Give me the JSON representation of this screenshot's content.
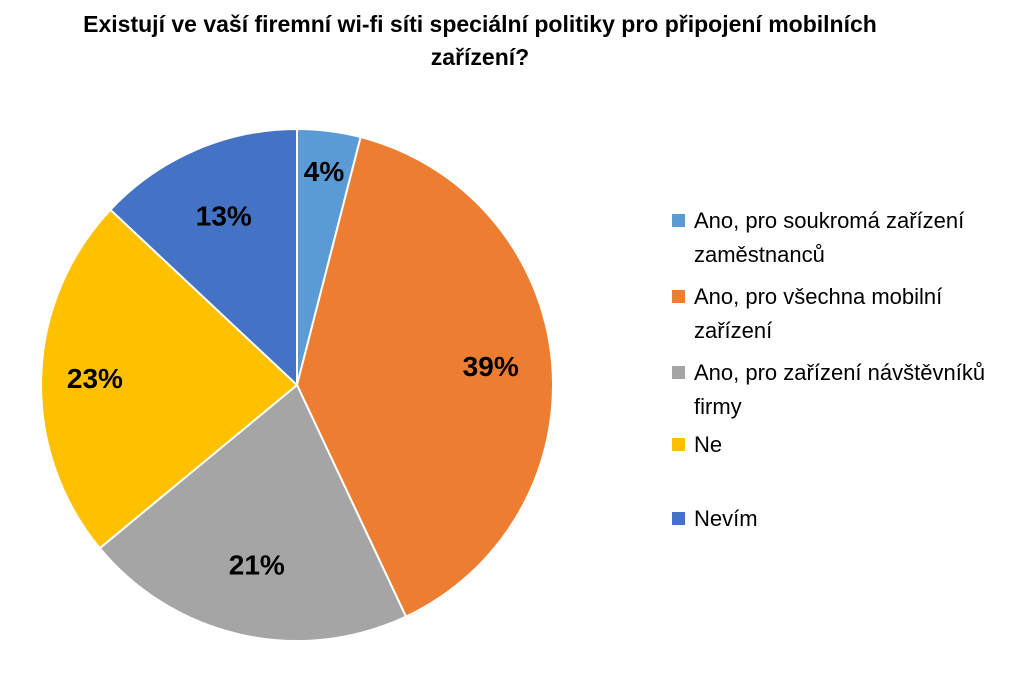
{
  "chart_data": {
    "type": "pie",
    "title": "Existují ve vaší firemní wi-fi síti speciální politiky pro připojení mobilních zařízení?",
    "categories": [
      "Ano, pro soukromá zařízení zaměstnanců",
      "Ano, pro všechna mobilní zařízení",
      "Ano, pro zařízení návštěvníků firmy",
      "Ne",
      "Nevím"
    ],
    "values": [
      4,
      39,
      21,
      23,
      13
    ],
    "unit": "%",
    "data_labels": [
      "4%",
      "39%",
      "21%",
      "23%",
      "13%"
    ],
    "colors": [
      "#5B9BD5",
      "#ED7D31",
      "#A5A5A5",
      "#FFC000",
      "#4472C4"
    ],
    "legend_position": "right"
  }
}
